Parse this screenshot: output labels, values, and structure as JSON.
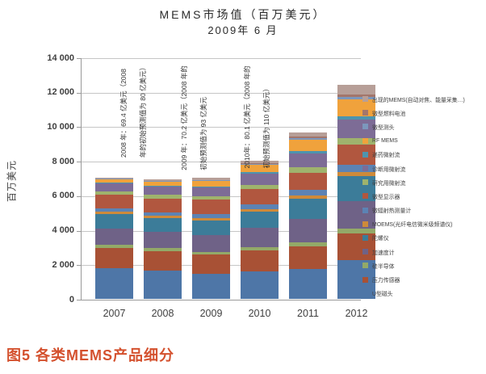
{
  "title": {
    "line1": "MEMS市场值（百万美元）",
    "line2": "2009年 6 月"
  },
  "caption": "图5  各类MEMS产品细分",
  "chart_data": {
    "type": "stacked-bar",
    "title": "MEMS市场值（百万美元） 2009年6月",
    "xlabel": "",
    "ylabel": "百万美元",
    "ylim": [
      0,
      14000
    ],
    "grid": true,
    "legend_position": "right",
    "yticks": [
      "0",
      "2 000",
      "4 000",
      "6 000",
      "8 000",
      "10 000",
      "12 000",
      "14 000"
    ],
    "categories": [
      "2007",
      "2008",
      "2009",
      "2010",
      "2011",
      "2012"
    ],
    "series": [
      {
        "name": "U型磁头",
        "color": "#4E76A7",
        "values": [
          1800,
          1620,
          1430,
          1570,
          1710,
          2230
        ]
      },
      {
        "name": "压力传感器",
        "color": "#A85135",
        "values": [
          1150,
          1150,
          1130,
          1240,
          1350,
          1550
        ]
      },
      {
        "name": "硅半导体",
        "color": "#93A968",
        "values": [
          180,
          170,
          170,
          200,
          230,
          280
        ]
      },
      {
        "name": "加速度计",
        "color": "#6F6287",
        "values": [
          950,
          930,
          960,
          1100,
          1350,
          1600
        ]
      },
      {
        "name": "陀螺仪",
        "color": "#3C7C99",
        "values": [
          820,
          810,
          870,
          950,
          1150,
          1450
        ]
      },
      {
        "name": "MOEMS(光纤电信微米级频谱仪)",
        "color": "#CE8A3A",
        "values": [
          150,
          140,
          130,
          160,
          200,
          250
        ]
      },
      {
        "name": "微辐射热测量计",
        "color": "#5C83B4",
        "values": [
          200,
          210,
          230,
          280,
          340,
          420
        ]
      },
      {
        "name": "微型显示器",
        "color": "#B1573F",
        "values": [
          800,
          800,
          820,
          870,
          1000,
          1180
        ]
      },
      {
        "name": "研究用微射流",
        "color": "#9FB36D",
        "values": [
          190,
          190,
          200,
          240,
          300,
          370
        ]
      },
      {
        "name": "诊断用微射流",
        "color": "#7D6C96",
        "values": [
          460,
          480,
          520,
          640,
          820,
          1080
        ]
      },
      {
        "name": "递药微射流",
        "color": "#4E94AE",
        "values": [
          40,
          50,
          60,
          90,
          130,
          190
        ]
      },
      {
        "name": "RF MEMS",
        "color": "#F0A23C",
        "values": [
          200,
          230,
          300,
          420,
          650,
          950
        ]
      },
      {
        "name": "微型测头",
        "color": "#7C97BC",
        "values": [
          30,
          40,
          50,
          70,
          100,
          140
        ]
      },
      {
        "name": "微型燃料电池",
        "color": "#A3766B",
        "values": [
          10,
          20,
          30,
          60,
          100,
          150
        ]
      },
      {
        "name": "出现的MEMS(自动对焦、能量采集…)",
        "color": "#B79F98",
        "values": [
          60,
          100,
          120,
          120,
          220,
          560
        ]
      }
    ],
    "annotations": [
      {
        "lines": [
          "2008 年：69.4 亿美元（2008",
          "年的初始预测值为 80 亿美元）"
        ]
      },
      {
        "lines": [
          "2009 年：70.2 亿美元（2008 年的",
          "初始预测值为 93 亿美元"
        ]
      },
      {
        "lines": [
          "2010年：80.1 亿美元（2008 年的",
          "初始预测值为 110 亿美元）"
        ]
      }
    ]
  }
}
